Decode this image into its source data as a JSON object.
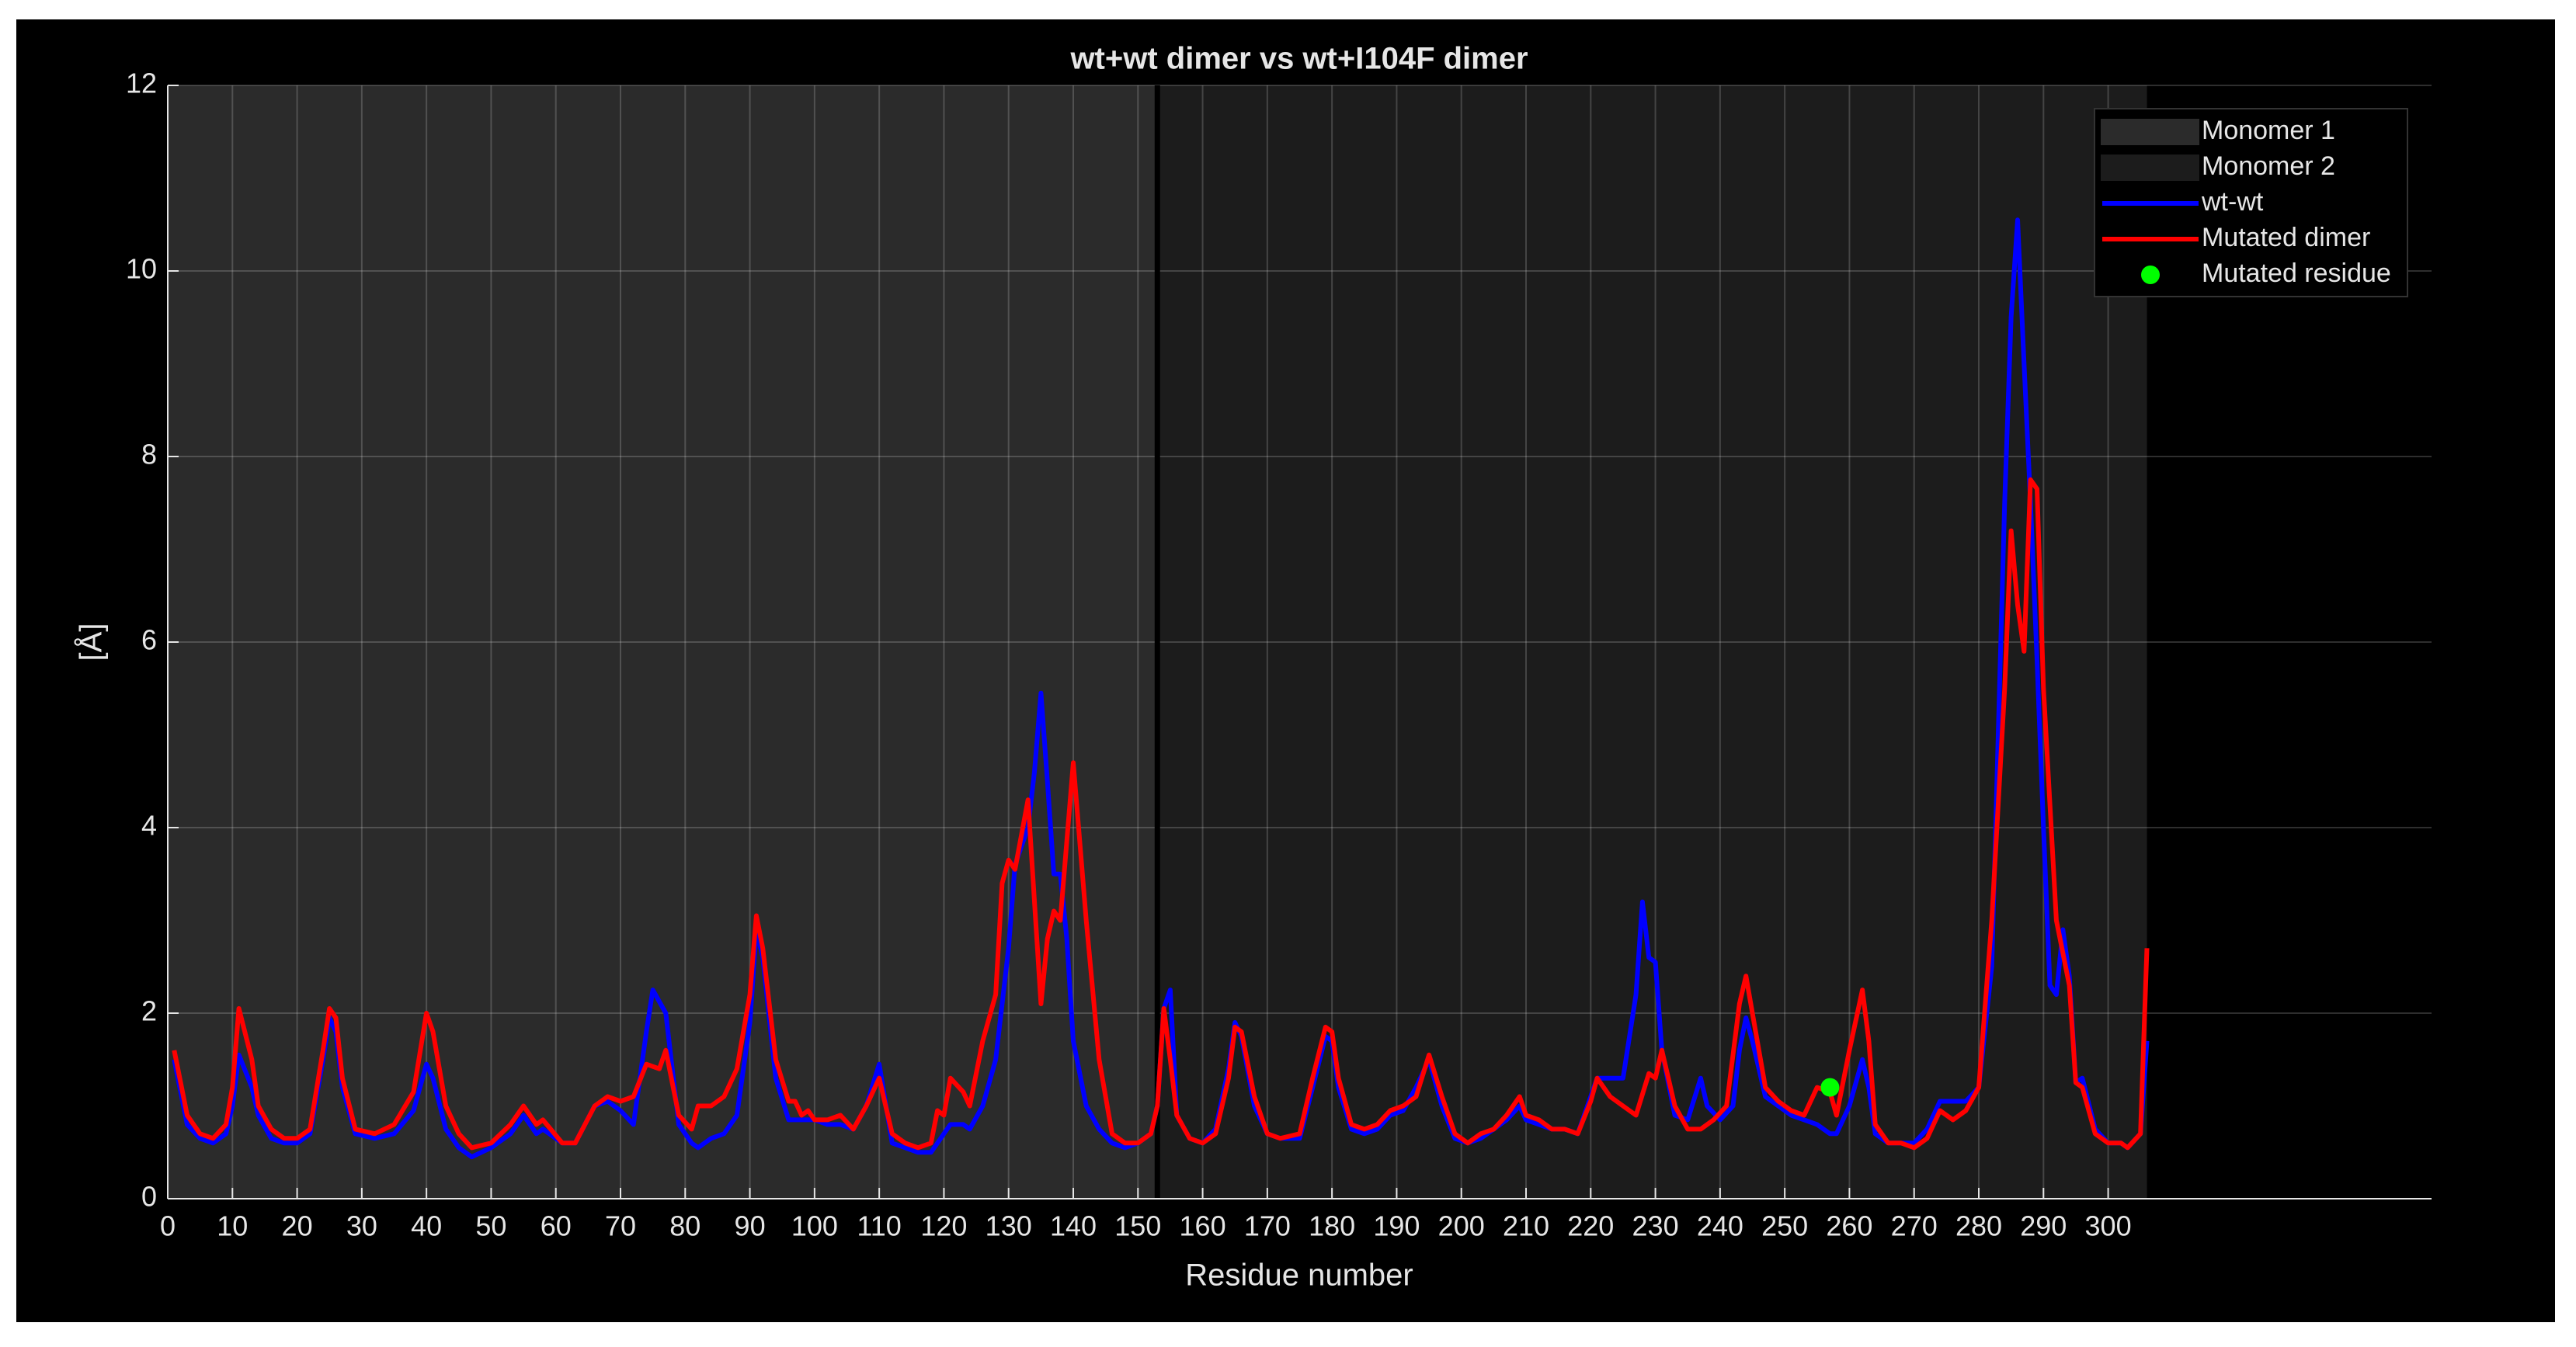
{
  "chart_data": {
    "type": "line",
    "title": "wt+wt dimer vs wt+I104F dimer",
    "xlabel": "Residue number",
    "ylabel": "[Å]",
    "xlim": [
      0,
      350
    ],
    "ylim": [
      0,
      12
    ],
    "xticks": [
      0,
      10,
      20,
      30,
      40,
      50,
      60,
      70,
      80,
      90,
      100,
      110,
      120,
      130,
      140,
      150,
      160,
      170,
      180,
      190,
      200,
      210,
      220,
      230,
      240,
      250,
      260,
      270,
      280,
      290,
      300
    ],
    "yticks": [
      0,
      2,
      4,
      6,
      8,
      10,
      12
    ],
    "grid": true,
    "legend": "upper right",
    "bands": [
      {
        "name": "Monomer 1",
        "color": "#2b2b2b",
        "range": [
          0,
          153
        ]
      },
      {
        "name": "Monomer 2",
        "color": "#1c1c1c",
        "range": [
          153,
          306
        ]
      }
    ],
    "vlines": [
      153
    ],
    "series": [
      {
        "name": "wt-wt",
        "color": "#0000ff",
        "x": [
          1,
          3,
          5,
          7,
          9,
          10,
          11,
          13,
          14,
          16,
          18,
          20,
          22,
          24,
          25,
          26,
          27,
          29,
          32,
          35,
          38,
          40,
          41,
          43,
          45,
          47,
          50,
          53,
          55,
          57,
          58,
          61,
          63,
          66,
          68,
          70,
          72,
          74,
          75,
          77,
          79,
          81,
          82,
          84,
          86,
          88,
          90,
          91,
          92,
          94,
          96,
          98,
          100,
          102,
          104,
          106,
          108,
          110,
          112,
          114,
          116,
          118,
          120,
          121,
          123,
          124,
          126,
          128,
          130,
          131,
          133,
          134,
          135,
          136,
          137,
          138,
          139,
          140,
          142,
          144,
          146,
          148,
          150,
          152,
          153,
          154,
          155,
          156,
          158,
          160,
          162,
          164,
          165,
          166,
          168,
          170,
          172,
          175,
          177,
          179,
          180,
          181,
          183,
          185,
          187,
          189,
          191,
          193,
          195,
          197,
          199,
          201,
          203,
          205,
          207,
          209,
          210,
          212,
          214,
          216,
          218,
          220,
          221,
          223,
          225,
          227,
          228,
          229,
          230,
          231,
          233,
          235,
          237,
          238,
          240,
          242,
          243,
          244,
          245,
          247,
          249,
          251,
          253,
          255,
          257,
          258,
          260,
          262,
          263,
          264,
          266,
          268,
          270,
          272,
          274,
          276,
          278,
          280,
          282,
          284,
          285,
          286,
          287,
          288,
          289,
          290,
          291,
          292,
          293,
          294,
          295,
          296,
          298,
          300,
          302,
          303,
          305,
          306
        ],
        "values": [
          1.5,
          0.8,
          0.65,
          0.6,
          0.7,
          1.0,
          1.55,
          1.2,
          0.9,
          0.65,
          0.6,
          0.6,
          0.7,
          1.5,
          1.95,
          1.8,
          1.2,
          0.7,
          0.65,
          0.7,
          0.95,
          1.45,
          1.3,
          0.75,
          0.55,
          0.45,
          0.55,
          0.7,
          0.9,
          0.7,
          0.75,
          0.6,
          0.6,
          1.0,
          1.05,
          0.95,
          0.8,
          1.8,
          2.25,
          2.0,
          0.8,
          0.6,
          0.55,
          0.65,
          0.7,
          0.9,
          1.9,
          2.9,
          2.6,
          1.3,
          0.85,
          0.85,
          0.85,
          0.8,
          0.8,
          0.75,
          1.0,
          1.45,
          0.6,
          0.55,
          0.5,
          0.5,
          0.7,
          0.8,
          0.8,
          0.75,
          1.0,
          1.5,
          2.7,
          3.6,
          4.0,
          4.6,
          5.45,
          4.5,
          3.5,
          3.5,
          2.8,
          1.7,
          1.0,
          0.75,
          0.6,
          0.55,
          0.6,
          0.7,
          1.0,
          2.05,
          2.25,
          0.9,
          0.65,
          0.6,
          0.75,
          1.4,
          1.9,
          1.75,
          1.0,
          0.7,
          0.65,
          0.65,
          1.2,
          1.75,
          1.7,
          1.2,
          0.75,
          0.7,
          0.75,
          0.9,
          0.95,
          1.2,
          1.5,
          1.0,
          0.65,
          0.6,
          0.65,
          0.75,
          0.85,
          1.0,
          0.85,
          0.8,
          0.75,
          0.75,
          0.7,
          1.1,
          1.3,
          1.3,
          1.3,
          2.2,
          3.2,
          2.6,
          2.55,
          1.6,
          0.9,
          0.85,
          1.3,
          1.0,
          0.85,
          1.0,
          1.6,
          1.95,
          1.7,
          1.1,
          1.0,
          0.9,
          0.85,
          0.8,
          0.7,
          0.7,
          1.0,
          1.5,
          1.2,
          0.7,
          0.6,
          0.6,
          0.6,
          0.75,
          1.05,
          1.05,
          1.05,
          1.2,
          2.5,
          7.5,
          9.5,
          10.55,
          9.0,
          7.5,
          5.8,
          4.0,
          2.3,
          2.2,
          2.9,
          2.4,
          1.25,
          1.3,
          0.75,
          0.6,
          0.6,
          0.55,
          0.7,
          1.7
        ]
      },
      {
        "name": "Mutated dimer",
        "color": "#ff0000",
        "x": [
          1,
          3,
          5,
          7,
          9,
          10,
          11,
          13,
          14,
          16,
          18,
          20,
          22,
          24,
          25,
          26,
          27,
          29,
          32,
          35,
          38,
          40,
          41,
          43,
          45,
          47,
          50,
          53,
          55,
          57,
          58,
          61,
          63,
          66,
          68,
          70,
          72,
          74,
          76,
          77,
          79,
          81,
          82,
          84,
          86,
          88,
          90,
          91,
          92,
          94,
          96,
          97,
          98,
          99,
          100,
          102,
          104,
          106,
          108,
          110,
          112,
          114,
          116,
          118,
          119,
          120,
          121,
          123,
          124,
          126,
          128,
          129,
          130,
          131,
          133,
          135,
          136,
          137,
          138,
          140,
          142,
          144,
          146,
          148,
          150,
          152,
          153,
          154,
          155,
          156,
          158,
          160,
          162,
          164,
          165,
          166,
          168,
          170,
          172,
          175,
          177,
          179,
          180,
          181,
          183,
          185,
          187,
          189,
          191,
          193,
          195,
          197,
          199,
          201,
          203,
          205,
          207,
          209,
          210,
          212,
          214,
          216,
          218,
          220,
          221,
          223,
          225,
          227,
          229,
          230,
          231,
          233,
          235,
          237,
          239,
          241,
          243,
          244,
          245,
          247,
          249,
          251,
          253,
          255,
          257,
          258,
          260,
          262,
          263,
          264,
          266,
          268,
          270,
          272,
          274,
          276,
          278,
          280,
          282,
          284,
          285,
          286,
          287,
          288,
          289,
          290,
          292,
          294,
          295,
          296,
          298,
          300,
          302,
          303,
          305,
          306
        ],
        "values": [
          1.6,
          0.9,
          0.7,
          0.65,
          0.8,
          1.2,
          2.05,
          1.5,
          1.0,
          0.75,
          0.65,
          0.65,
          0.75,
          1.6,
          2.05,
          1.95,
          1.3,
          0.75,
          0.7,
          0.8,
          1.15,
          2.0,
          1.8,
          1.0,
          0.7,
          0.55,
          0.6,
          0.8,
          1.0,
          0.8,
          0.85,
          0.6,
          0.6,
          1.0,
          1.1,
          1.05,
          1.1,
          1.45,
          1.4,
          1.6,
          0.9,
          0.75,
          1.0,
          1.0,
          1.1,
          1.4,
          2.2,
          3.05,
          2.7,
          1.5,
          1.05,
          1.05,
          0.9,
          0.95,
          0.85,
          0.85,
          0.9,
          0.75,
          1.0,
          1.3,
          0.7,
          0.6,
          0.55,
          0.6,
          0.95,
          0.9,
          1.3,
          1.15,
          1.0,
          1.7,
          2.2,
          3.4,
          3.65,
          3.55,
          4.3,
          2.1,
          2.8,
          3.1,
          3.0,
          4.7,
          3.0,
          1.5,
          0.7,
          0.6,
          0.6,
          0.7,
          1.0,
          2.05,
          1.5,
          0.9,
          0.65,
          0.6,
          0.7,
          1.3,
          1.85,
          1.8,
          1.1,
          0.7,
          0.65,
          0.7,
          1.3,
          1.85,
          1.8,
          1.3,
          0.8,
          0.75,
          0.8,
          0.95,
          1.0,
          1.1,
          1.55,
          1.1,
          0.7,
          0.6,
          0.7,
          0.75,
          0.9,
          1.1,
          0.9,
          0.85,
          0.75,
          0.75,
          0.7,
          1.05,
          1.3,
          1.1,
          1.0,
          0.9,
          1.35,
          1.3,
          1.6,
          1.0,
          0.75,
          0.75,
          0.85,
          1.0,
          2.1,
          2.4,
          2.0,
          1.2,
          1.05,
          0.95,
          0.9,
          1.2,
          1.15,
          0.9,
          1.6,
          2.25,
          1.7,
          0.8,
          0.6,
          0.6,
          0.55,
          0.65,
          0.95,
          0.85,
          0.95,
          1.2,
          3.0,
          5.5,
          7.2,
          6.4,
          5.9,
          7.75,
          7.65,
          5.5,
          3.0,
          2.3,
          1.25,
          1.2,
          0.7,
          0.6,
          0.6,
          0.55,
          0.7,
          2.7
        ]
      }
    ],
    "points": {
      "name": "Mutated residue",
      "color": "#00ff00",
      "x": [
        257
      ],
      "values": [
        1.2
      ]
    }
  }
}
